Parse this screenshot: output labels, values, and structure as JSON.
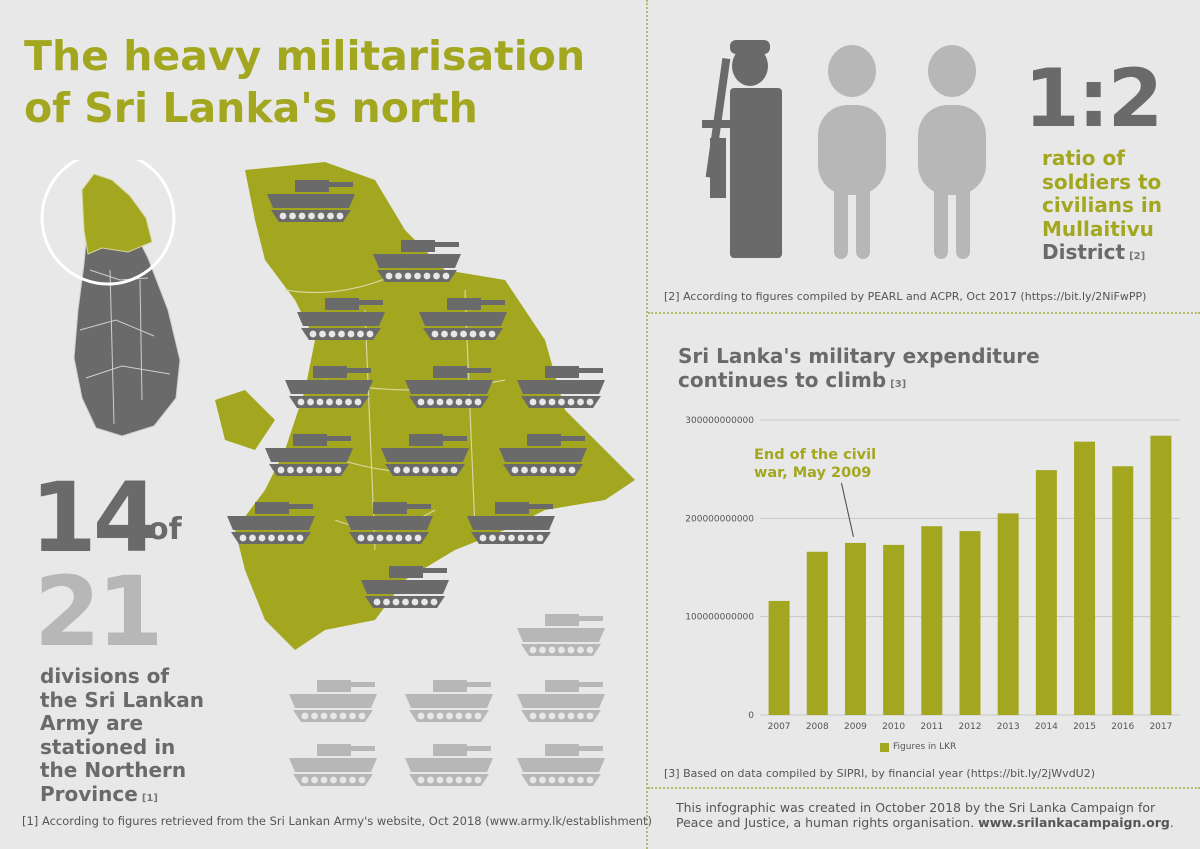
{
  "title": {
    "line1": "The heavy militarisation",
    "line2": "of Sri Lanka's north"
  },
  "divisions": {
    "count": "14",
    "of_label": "of",
    "total": "21",
    "lines": [
      "divisions of",
      "the Sri Lankan",
      "Army are",
      "stationed in",
      "the Northern",
      "Province"
    ],
    "ref": "[1]"
  },
  "ratio": {
    "value": "1:2",
    "lines": [
      "ratio of",
      "soldiers to",
      "civilians in",
      "Mullaitivu"
    ],
    "last_line": "District",
    "ref": "[2]"
  },
  "footnotes": {
    "fn1": "[1] According to figures retrieved from the Sri Lankan Army's website, Oct 2018 (www.army.lk/establishment)",
    "fn2": "[2] According to figures compiled by PEARL and ACPR, Oct 2017 (https://bit.ly/2NiFwPP)",
    "fn3": "[3] Based on data compiled by SIPRI, by financial year (https://bit.ly/2jWvdU2)"
  },
  "footer": {
    "text": "This infographic was created in October 2018 by the Sri Lanka Campaign for Peace and Justice, a human rights organisation. ",
    "link": "www.srilankacampaign.org",
    "tail": "."
  },
  "colors": {
    "olive": "#a3a71f",
    "dark_gray": "#6a6a6a",
    "light_gray": "#b7b7b7",
    "background": "#e8e8e8"
  },
  "icons": {
    "soldier": "soldier-with-rifle-icon",
    "civilian": "person-icon",
    "tank": "tank-icon",
    "map": "sri-lanka-map"
  },
  "chart_data": {
    "type": "bar",
    "title_lines": [
      "Sri Lanka's military expenditure",
      "continues to climb"
    ],
    "title_ref": "[3]",
    "categories": [
      "2007",
      "2008",
      "2009",
      "2010",
      "2011",
      "2012",
      "2013",
      "2014",
      "2015",
      "2016",
      "2017"
    ],
    "series": [
      {
        "name": "Figures in LKR",
        "values": [
          116000000000,
          166000000000,
          175000000000,
          173000000000,
          192000000000,
          187000000000,
          205000000000,
          249000000000,
          278000000000,
          253000000000,
          284000000000
        ]
      }
    ],
    "ylim": [
      0,
      300000000000
    ],
    "yticks": [
      "0",
      "100000000000",
      "200000000000",
      "300000000000"
    ],
    "annotation": {
      "lines": [
        "End of the civil",
        "war, May 2009"
      ],
      "category": "2009"
    },
    "grid": true,
    "legend": "bottom"
  }
}
